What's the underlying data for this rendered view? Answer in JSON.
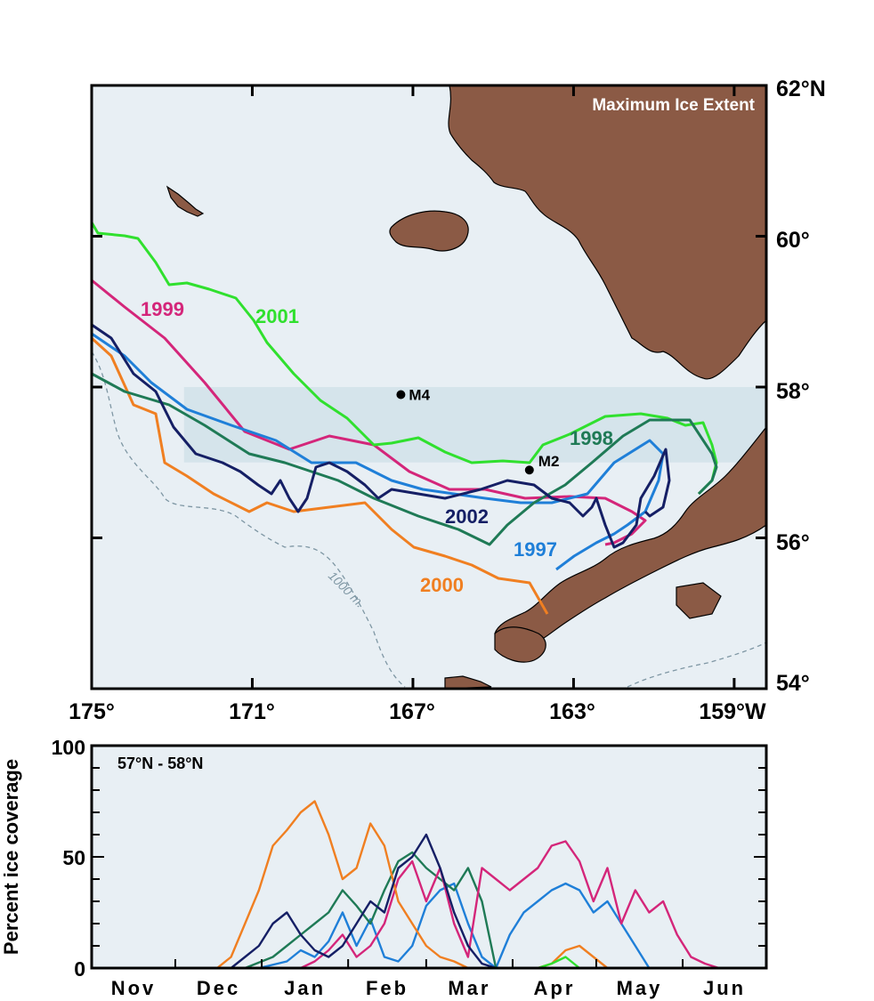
{
  "map": {
    "title": "Maximum Ice Extent",
    "x_ticks": [
      "175°",
      "171°",
      "167°",
      "163°",
      "159°W"
    ],
    "y_ticks": [
      "62°N",
      "60°",
      "58°",
      "56°",
      "54°"
    ],
    "xlim_deg_w": [
      175,
      158.2
    ],
    "ylim_deg_n": [
      54,
      62
    ],
    "box_band_deg_n": [
      57,
      58
    ],
    "isobath_label": "1000 m.",
    "stations": [
      {
        "name": "M4",
        "lon_w": 167.3,
        "lat_n": 57.9
      },
      {
        "name": "M2",
        "lon_w": 164.1,
        "lat_n": 56.9
      }
    ],
    "colors": {
      "ocean": "#e8eff4",
      "land": "#8b5a45",
      "box": "#d3e2ea",
      "isobath": "#7f97a4"
    }
  },
  "chart_data": {
    "type": "line",
    "title": "57°N - 58°N",
    "ylabel": "Percent ice coverage",
    "xlabel": "",
    "months": [
      "Nov",
      "Dec",
      "Jan",
      "Feb",
      "Mar",
      "Apr",
      "May",
      "Jun"
    ],
    "yticks": [
      "0",
      "50",
      "100"
    ],
    "ylim": [
      0,
      100
    ],
    "x_unit": "day of season (0 = Nov 1)",
    "xlim": [
      0,
      242
    ],
    "grid": false,
    "legend": "labels on map",
    "series": [
      {
        "name": "1997",
        "color": "#1f7fd8",
        "x": [
          0,
          60,
          70,
          75,
          80,
          85,
          90,
          95,
          100,
          105,
          110,
          115,
          120,
          125,
          130,
          135,
          140,
          145,
          150,
          155,
          160,
          165,
          170,
          175,
          180,
          185,
          190,
          195,
          200,
          242
        ],
        "y": [
          0,
          0,
          3,
          8,
          5,
          12,
          25,
          10,
          22,
          5,
          3,
          10,
          28,
          35,
          38,
          20,
          5,
          0,
          15,
          25,
          30,
          35,
          38,
          35,
          25,
          30,
          20,
          10,
          0,
          0
        ]
      },
      {
        "name": "1998",
        "color": "#1f7a56",
        "x": [
          0,
          55,
          65,
          70,
          75,
          80,
          85,
          90,
          95,
          100,
          105,
          110,
          115,
          120,
          125,
          130,
          135,
          140,
          145,
          242
        ],
        "y": [
          0,
          0,
          5,
          10,
          15,
          20,
          25,
          35,
          28,
          20,
          35,
          48,
          52,
          45,
          40,
          35,
          45,
          30,
          0,
          0
        ]
      },
      {
        "name": "1999",
        "color": "#d4267a",
        "x": [
          0,
          60,
          75,
          80,
          85,
          90,
          95,
          100,
          105,
          110,
          115,
          120,
          125,
          130,
          135,
          140,
          145,
          150,
          155,
          160,
          165,
          170,
          175,
          180,
          185,
          190,
          195,
          200,
          205,
          210,
          215,
          220,
          225,
          242
        ],
        "y": [
          0,
          0,
          0,
          3,
          8,
          15,
          5,
          10,
          20,
          40,
          48,
          30,
          45,
          20,
          5,
          45,
          40,
          35,
          40,
          45,
          55,
          57,
          48,
          30,
          45,
          20,
          35,
          25,
          30,
          15,
          5,
          2,
          0,
          0
        ]
      },
      {
        "name": "2000",
        "color": "#f07f21",
        "x": [
          0,
          45,
          50,
          55,
          60,
          65,
          70,
          75,
          80,
          85,
          90,
          95,
          100,
          105,
          110,
          115,
          120,
          125,
          130,
          135,
          140,
          145,
          150,
          155,
          160,
          165,
          170,
          175,
          180,
          185,
          190,
          242
        ],
        "y": [
          0,
          0,
          5,
          20,
          35,
          55,
          62,
          70,
          75,
          60,
          40,
          45,
          65,
          55,
          30,
          20,
          10,
          5,
          3,
          0,
          0,
          0,
          0,
          0,
          0,
          2,
          8,
          10,
          5,
          0,
          0,
          0
        ]
      },
      {
        "name": "2001",
        "color": "#30e02e",
        "x": [
          0,
          135,
          140,
          145,
          150,
          155,
          160,
          165,
          170,
          175,
          242
        ],
        "y": [
          0,
          0,
          0,
          0,
          0,
          0,
          0,
          2,
          5,
          0,
          0
        ]
      },
      {
        "name": "2002",
        "color": "#151f65",
        "x": [
          0,
          50,
          55,
          60,
          65,
          70,
          75,
          80,
          85,
          90,
          95,
          100,
          105,
          110,
          115,
          120,
          125,
          130,
          135,
          140,
          145,
          242
        ],
        "y": [
          0,
          0,
          5,
          10,
          20,
          25,
          15,
          8,
          5,
          10,
          20,
          30,
          25,
          45,
          50,
          60,
          45,
          25,
          10,
          2,
          0,
          0
        ]
      }
    ]
  }
}
